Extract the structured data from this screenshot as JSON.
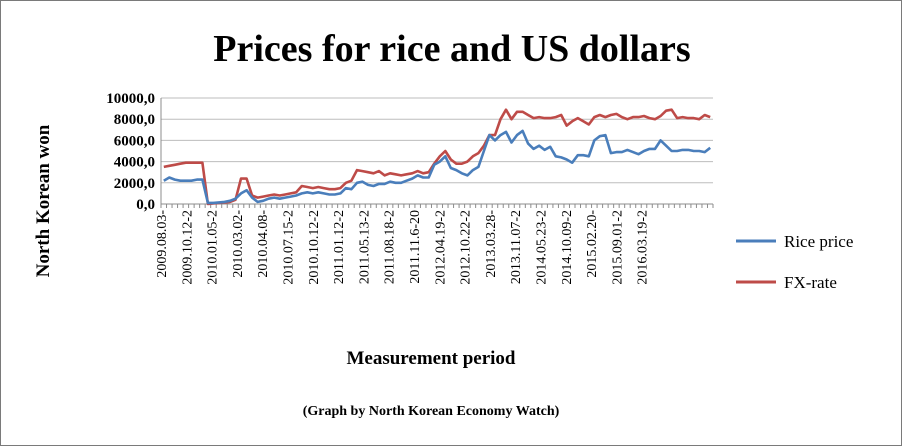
{
  "chart_data": {
    "type": "line",
    "title": "Prices for rice and US dollars",
    "xlabel": "Measurement period",
    "ylabel": "North Korean won",
    "caption": "(Graph by North Korean Economy Watch)",
    "ylim": [
      0,
      10000
    ],
    "yticks": [
      "0,0",
      "2000,0",
      "4000,0",
      "6000,0",
      "8000,0",
      "10000,0"
    ],
    "x_tick_labels": [
      "2009.08.03-",
      "2009.10.12-2",
      "2010.01.05-2",
      "2010.03.02-",
      "2010.04.08-",
      "2010.07.15-2",
      "2010.10.12-2",
      "2011.01.12-2",
      "2011.05.13-2",
      "2011.08.18-2",
      "2011.11.6-20",
      "2012.04.19-2",
      "2012.10.22-2",
      "2013.03.28-",
      "2013.11.07-2",
      "2014.05.23-2",
      "2014.10.09-2",
      "2015.02.20-",
      "2015.09.01-2",
      "2016.03.19-2"
    ],
    "grid": "horizontal",
    "legend": "right",
    "series": [
      {
        "name": "Rice price",
        "color": "#4a7ebb",
        "values": [
          2200,
          2500,
          2300,
          2200,
          2200,
          2200,
          2300,
          2300,
          100,
          100,
          150,
          200,
          300,
          500,
          1000,
          1300,
          600,
          200,
          300,
          500,
          600,
          500,
          600,
          700,
          800,
          1000,
          1100,
          1000,
          1100,
          1000,
          900,
          900,
          1000,
          1500,
          1400,
          2000,
          2100,
          1800,
          1700,
          1900,
          1900,
          2100,
          2000,
          2000,
          2200,
          2400,
          2700,
          2500,
          2500,
          3700,
          4000,
          4500,
          3400,
          3200,
          2900,
          2700,
          3200,
          3500,
          5000,
          6500,
          6000,
          6500,
          6800,
          5800,
          6500,
          6900,
          5700,
          5200,
          5500,
          5100,
          5400,
          4500,
          4400,
          4200,
          3900,
          4600,
          4600,
          4500,
          6000,
          6400,
          6500,
          4800,
          4900,
          4900,
          5100,
          4900,
          4700,
          5000,
          5200,
          5200,
          6000,
          5500,
          5000,
          5000,
          5100,
          5100,
          5000,
          5000,
          4900,
          5300
        ]
      },
      {
        "name": "FX-rate",
        "color": "#be4b48",
        "values": [
          3500,
          3600,
          3700,
          3800,
          3900,
          3900,
          3900,
          3900,
          0,
          50,
          100,
          150,
          200,
          400,
          2400,
          2400,
          800,
          600,
          700,
          800,
          900,
          800,
          900,
          1000,
          1100,
          1700,
          1600,
          1500,
          1600,
          1500,
          1400,
          1400,
          1500,
          2000,
          2200,
          3200,
          3100,
          3000,
          2900,
          3100,
          2700,
          2900,
          2800,
          2700,
          2800,
          2900,
          3100,
          2900,
          3000,
          3800,
          4500,
          5000,
          4200,
          3800,
          3800,
          4000,
          4500,
          4800,
          5500,
          6500,
          6500,
          8000,
          8900,
          8000,
          8700,
          8700,
          8400,
          8100,
          8200,
          8100,
          8100,
          8200,
          8400,
          7400,
          7800,
          8100,
          7800,
          7500,
          8200,
          8400,
          8200,
          8400,
          8500,
          8200,
          8000,
          8200,
          8200,
          8300,
          8100,
          8000,
          8300,
          8800,
          8900,
          8100,
          8200,
          8100,
          8100,
          8000,
          8400,
          8200
        ]
      }
    ]
  }
}
